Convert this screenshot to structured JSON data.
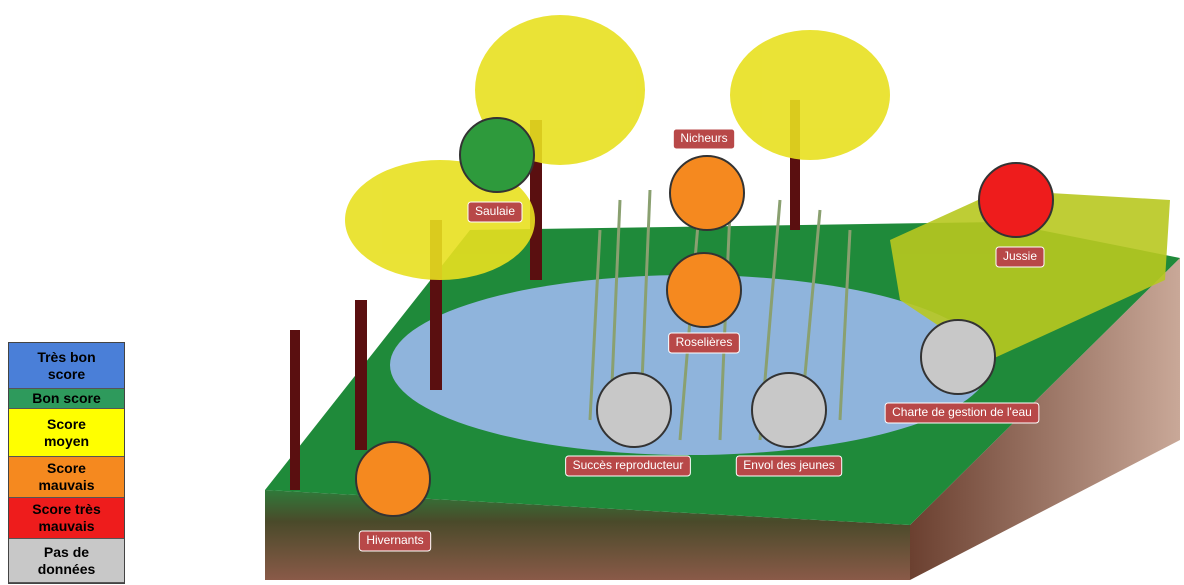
{
  "legend": {
    "items": [
      {
        "label": "Très bon score",
        "color": "#4a7fd8"
      },
      {
        "label": "Bon score",
        "color": "#2e9a5c"
      },
      {
        "label": "Score moyen",
        "color": "#ffff00"
      },
      {
        "label": "Score mauvais",
        "color": "#f5891f"
      },
      {
        "label": "Score très mauvais",
        "color": "#ee1c1c"
      },
      {
        "label": "Pas de données",
        "color": "#c8c8c8"
      }
    ]
  },
  "nodes": [
    {
      "label": "Saulaie",
      "color": "#2e9a3c"
    },
    {
      "label": "Nicheurs",
      "color": "#f5891f"
    },
    {
      "label": "Roselières",
      "color": "#f5891f"
    },
    {
      "label": "Jussie",
      "color": "#ee1c1c"
    },
    {
      "label": "Charte de gestion de l'eau",
      "color": "#c8c8c8"
    },
    {
      "label": "Succès reproducteur",
      "color": "#c8c8c8"
    },
    {
      "label": "Envol des jeunes",
      "color": "#c8c8c8"
    },
    {
      "label": "Hivernants",
      "color": "#f5891f"
    }
  ]
}
